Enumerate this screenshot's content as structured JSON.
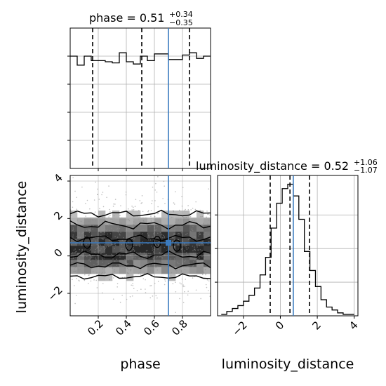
{
  "chart_data": {
    "type": "corner",
    "colors": {
      "truth": "#3b7bbf",
      "hist": "#000000",
      "grid": "#b0b0b0"
    },
    "truth": {
      "phase": 0.7,
      "luminosity_distance": 0.7
    },
    "phase_panel": {
      "title_main": "phase = 0.51",
      "title_sup": "+0.34",
      "title_sub": "−0.35",
      "xlim": [
        0.0,
        1.0
      ],
      "quantiles": [
        0.16,
        0.51,
        0.85
      ],
      "hist_bin_edges": [
        0.0,
        0.05,
        0.1,
        0.15,
        0.2,
        0.25,
        0.3,
        0.35,
        0.4,
        0.45,
        0.5,
        0.55,
        0.6,
        0.65,
        0.7,
        0.75,
        0.8,
        0.85,
        0.9,
        0.95,
        1.0
      ],
      "hist_values": [
        1.0,
        0.92,
        1.0,
        0.96,
        0.96,
        0.95,
        0.94,
        1.03,
        0.95,
        0.93,
        1.0,
        0.96,
        1.02,
        1.02,
        0.97,
        0.97,
        1.01,
        1.03,
        0.98,
        1.0
      ],
      "ylim": [
        0,
        1.25
      ]
    },
    "joint_panel": {
      "xlabel": "phase",
      "ylabel": "luminosity_distance",
      "xlim": [
        0.0,
        1.0
      ],
      "ylim": [
        -3.2,
        4.3
      ],
      "xticks": [
        0.2,
        0.4,
        0.6,
        0.8
      ],
      "xtick_labels": [
        "0.2",
        "0.4",
        "0.6",
        "0.8"
      ],
      "yticks": [
        -2,
        0,
        2,
        4
      ],
      "ytick_labels": [
        "−2",
        "0",
        "2",
        "4"
      ],
      "grid": true
    },
    "ld_panel": {
      "title_main": "luminosity_distance = 0.52",
      "title_sup": "+1.06",
      "title_sub": "−1.07",
      "xlabel": "luminosity_distance",
      "xlim": [
        -3.4,
        4.2
      ],
      "xticks": [
        -2,
        0,
        2,
        4
      ],
      "xtick_labels": [
        "−2",
        "0",
        "2",
        "4"
      ],
      "quantiles": [
        -0.55,
        0.52,
        1.58
      ],
      "hist_bin_edges": [
        -3.2,
        -2.9,
        -2.6,
        -2.3,
        -2.0,
        -1.7,
        -1.4,
        -1.1,
        -0.8,
        -0.5,
        -0.2,
        0.1,
        0.4,
        0.7,
        1.0,
        1.3,
        1.6,
        1.9,
        2.2,
        2.5,
        2.8,
        3.1,
        3.4,
        3.7,
        4.0
      ],
      "hist_values": [
        1,
        3,
        5,
        7,
        10,
        14,
        19,
        28,
        40,
        60,
        77,
        87,
        90,
        82,
        66,
        44,
        31,
        20,
        11,
        6,
        4,
        2,
        1,
        1
      ],
      "ylim": [
        0,
        96
      ]
    }
  }
}
